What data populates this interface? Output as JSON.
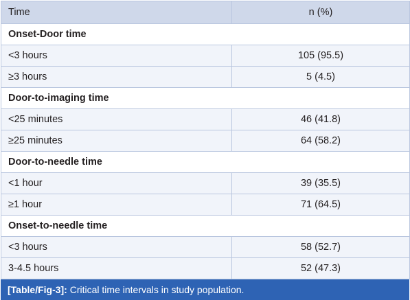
{
  "table": {
    "headers": [
      "Time",
      "n (%)"
    ],
    "groups": [
      {
        "title": "Onset-Door time",
        "rows": [
          {
            "label": "<3 hours",
            "value": "105 (95.5)"
          },
          {
            "label": "≥3 hours",
            "value": "5 (4.5)"
          }
        ]
      },
      {
        "title": "Door-to-imaging time",
        "rows": [
          {
            "label": "<25 minutes",
            "value": "46 (41.8)"
          },
          {
            "label": "≥25 minutes",
            "value": "64 (58.2)"
          }
        ]
      },
      {
        "title": "Door-to-needle time",
        "rows": [
          {
            "label": "<1 hour",
            "value": "39 (35.5)"
          },
          {
            "label": "≥1 hour",
            "value": "71 (64.5)"
          }
        ]
      },
      {
        "title": "Onset-to-needle time",
        "rows": [
          {
            "label": "<3 hours",
            "value": "58 (52.7)"
          },
          {
            "label": "3-4.5 hours",
            "value": "52 (47.3)"
          }
        ]
      }
    ]
  },
  "caption": {
    "tag": "[Table/Fig-3]:",
    "text": " Critical time intervals in study population."
  },
  "colors": {
    "header_bg": "#cfd8ea",
    "row_bg": "#f1f4fa",
    "border": "#b9c6df",
    "caption_bg": "#2e63b4",
    "caption_text": "#ffffff"
  }
}
